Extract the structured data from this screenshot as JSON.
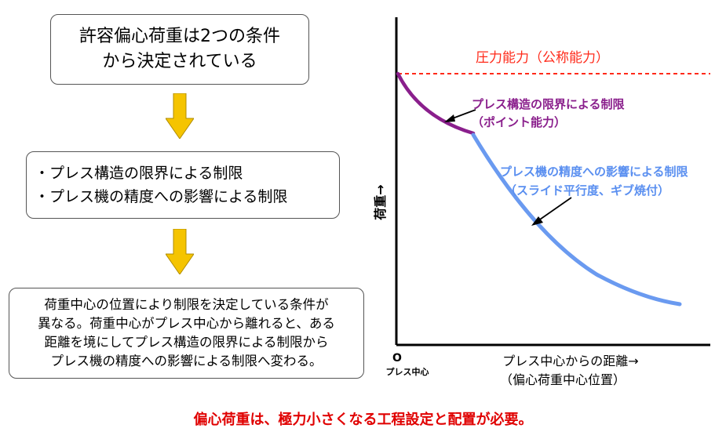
{
  "flow": {
    "box1": [
      "許容偏心荷重は2つの条件",
      "から決定されている"
    ],
    "box2": [
      "・プレス構造の限界による制限",
      "・プレス機の精度への影響による制限"
    ],
    "box3": [
      "荷重中心の位置により制限を決定している条件が",
      "異なる。荷重中心がプレス中心から離れると、ある",
      "距離を境にしてプレス構造の限界による制限から",
      "プレス機の精度への影響による制限へ変わる。"
    ]
  },
  "graph": {
    "y_label": "荷重→",
    "x_label_1": "プレス中心からの距離→",
    "x_label_2": "（偏心荷重中心位置）",
    "origin": "O",
    "origin_sub": "プレス中心",
    "pressure_capacity": "圧力能力（公称能力）",
    "structure_limit_1": "プレス構造の限界による制限",
    "structure_limit_2": "（ポイント能力）",
    "accuracy_limit_1": "プレス機の精度への影響による制限",
    "accuracy_limit_2": "（スライド平行度、ギブ焼付）"
  },
  "note": "偏心荷重は、極力小さくなる工程設定と配置が必要。",
  "colors": {
    "red_line": "#ff2a1a",
    "purple_curve": "#8a1f8c",
    "blue_curve": "#6a9af0",
    "arrow_fill": "#f5c400",
    "note_red": "#e00000"
  }
}
